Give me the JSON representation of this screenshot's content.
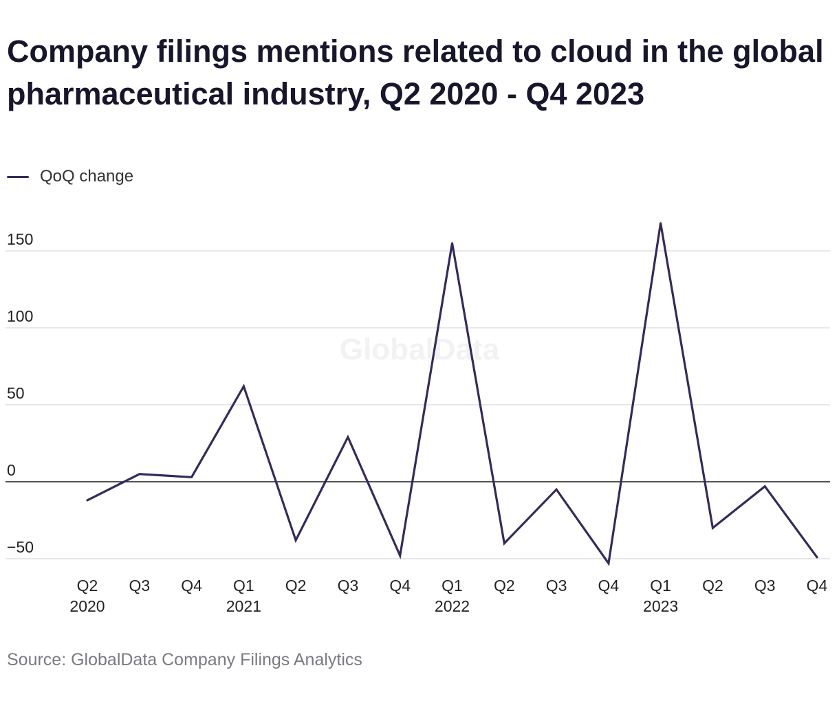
{
  "header": {
    "title": "Company filings mentions related to cloud in the global pharmaceutical industry, Q2 2020 - Q4 2023"
  },
  "legend": {
    "label": "QoQ change"
  },
  "watermark": "GlobalData",
  "footer": {
    "source": "Source: GlobalData Company Filings Analytics"
  },
  "colors": {
    "line": "#362a5a",
    "grid": "#d9d9d9",
    "zero_line": "#1a1a1a",
    "tick_text": "#222222"
  },
  "chart_data": {
    "type": "line",
    "title": "Company filings mentions related to cloud in the global pharmaceutical industry, Q2 2020 - Q4 2023",
    "xlabel": "",
    "ylabel": "",
    "ylim": [
      -50,
      150
    ],
    "yticks": [
      -50,
      0,
      50,
      100,
      150
    ],
    "ytick_labels": [
      "−50",
      "0",
      "50",
      "100",
      "150"
    ],
    "grid": true,
    "legend_position": "top-left",
    "categories": [
      "Q2 2020",
      "Q3 2020",
      "Q4 2020",
      "Q1 2021",
      "Q2 2021",
      "Q3 2021",
      "Q4 2021",
      "Q1 2022",
      "Q2 2022",
      "Q3 2022",
      "Q4 2022",
      "Q1 2023",
      "Q2 2023",
      "Q3 2023",
      "Q4 2023"
    ],
    "x_tick_labels": [
      {
        "quarter": "Q2",
        "year": "2020"
      },
      {
        "quarter": "Q3",
        "year": ""
      },
      {
        "quarter": "Q4",
        "year": ""
      },
      {
        "quarter": "Q1",
        "year": "2021"
      },
      {
        "quarter": "Q2",
        "year": ""
      },
      {
        "quarter": "Q3",
        "year": ""
      },
      {
        "quarter": "Q4",
        "year": ""
      },
      {
        "quarter": "Q1",
        "year": "2022"
      },
      {
        "quarter": "Q2",
        "year": ""
      },
      {
        "quarter": "Q3",
        "year": ""
      },
      {
        "quarter": "Q4",
        "year": ""
      },
      {
        "quarter": "Q1",
        "year": "2023"
      },
      {
        "quarter": "Q2",
        "year": ""
      },
      {
        "quarter": "Q3",
        "year": ""
      },
      {
        "quarter": "Q4",
        "year": ""
      }
    ],
    "series": [
      {
        "name": "QoQ change",
        "values": [
          -12,
          5,
          3,
          62,
          -38,
          29,
          -48,
          155,
          -40,
          -5,
          -53,
          168,
          -30,
          -3,
          -49
        ]
      }
    ]
  }
}
